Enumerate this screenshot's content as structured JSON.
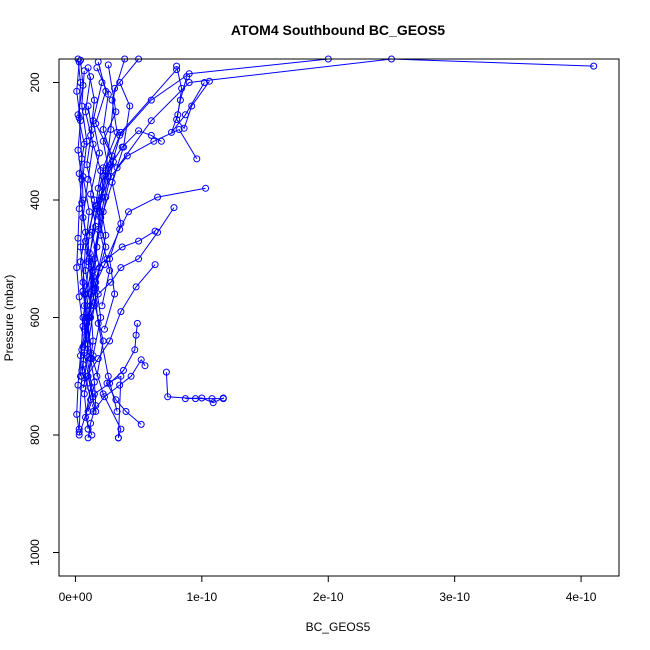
{
  "chart_data": {
    "type": "line",
    "title": "ATOM4 Southbound BC_GEOS5",
    "xlabel": "BC_GEOS5",
    "ylabel": "Pressure (mbar)",
    "xlim": [
      -1.3e-11,
      4.3e-10
    ],
    "ylim": [
      1040,
      160
    ],
    "y_reversed": true,
    "x_ticks": [
      0,
      1e-10,
      2e-10,
      3e-10,
      4e-10
    ],
    "x_tick_labels": [
      "0e+00",
      "1e-10",
      "2e-10",
      "3e-10",
      "4e-10"
    ],
    "y_ticks": [
      200,
      400,
      600,
      800,
      1000
    ],
    "y_tick_labels": [
      "200",
      "400",
      "600",
      "800",
      "1000"
    ],
    "grid": false,
    "legend": "none",
    "marker": "open-circle",
    "series_color": "#0000ff",
    "series": [
      {
        "x": [
          2e-12,
          4e-12,
          3e-12,
          5e-12,
          6e-12,
          4e-12,
          8e-12,
          7e-12,
          1.2e-11,
          1.5e-11,
          1.6e-11,
          1.2e-11,
          1e-11
        ],
        "y": [
          160,
          200,
          260,
          330,
          400,
          480,
          560,
          620,
          670,
          710,
          750,
          780,
          805
        ]
      },
      {
        "x": [
          5e-11,
          3.1e-11,
          2.8e-11,
          2.4e-11,
          1.9e-11,
          1.7e-11,
          1.4e-11,
          9e-12,
          6e-12,
          1.2e-11,
          3e-12
        ],
        "y": [
          160,
          210,
          280,
          350,
          420,
          480,
          550,
          610,
          680,
          740,
          800
        ]
      },
      {
        "x": [
          2e-10,
          9e-11,
          6e-11,
          3.5e-11,
          2.2e-11,
          1.8e-11,
          1.4e-11,
          1e-11,
          5e-12,
          3e-12
        ],
        "y": [
          160,
          185,
          230,
          290,
          360,
          450,
          520,
          600,
          700,
          790
        ]
      },
      {
        "x": [
          4.1e-10,
          2.5e-10,
          9e-11,
          6e-11,
          3.3e-11,
          2.2e-11,
          1.5e-11,
          9e-12,
          1.2e-11,
          2.2e-11,
          3.6e-11,
          3.4e-11
        ],
        "y": [
          172,
          160,
          200,
          265,
          345,
          420,
          500,
          580,
          660,
          730,
          790,
          805
        ]
      },
      {
        "x": [
          8e-11,
          3.6e-11,
          2.6e-11,
          2e-11,
          1.3e-11,
          6e-12,
          4e-12
        ],
        "y": [
          178,
          285,
          360,
          430,
          510,
          600,
          700
        ]
      },
      {
        "x": [
          9.6e-11,
          8.2e-11,
          6.2e-11,
          4.1e-11,
          2.8e-11,
          1.7e-11,
          1.1e-11,
          7e-12
        ],
        "y": [
          330,
          280,
          300,
          325,
          360,
          410,
          500,
          580
        ]
      },
      {
        "x": [
          1.03e-10,
          6.5e-11,
          4.2e-11,
          3.5e-11,
          2.3e-11,
          1.2e-11,
          9e-12,
          5e-12
        ],
        "y": [
          380,
          395,
          420,
          450,
          510,
          560,
          630,
          690
        ]
      },
      {
        "x": [
          7.8e-11,
          6.5e-11,
          5e-11,
          3.6e-11,
          2.8e-11,
          1.8e-11,
          1.2e-11,
          6e-12
        ],
        "y": [
          413,
          455,
          500,
          515,
          540,
          560,
          600,
          650
        ]
      },
      {
        "x": [
          6.3e-11,
          5e-11,
          3.7e-11,
          2.5e-11,
          1.4e-11,
          7e-12
        ],
        "y": [
          453,
          470,
          480,
          500,
          520,
          560
        ]
      },
      {
        "x": [
          6.3e-11,
          4.8e-11,
          3.6e-11,
          2.7e-11,
          1.8e-11,
          9e-12,
          6e-12
        ],
        "y": [
          510,
          548,
          590,
          640,
          670,
          700,
          720
        ]
      },
      {
        "x": [
          4.9e-11,
          4.8e-11,
          4.7e-11,
          3.8e-11,
          2.7e-11,
          1.5e-11,
          1e-11
        ],
        "y": [
          610,
          630,
          655,
          690,
          712,
          730,
          760
        ]
      },
      {
        "x": [
          5.5e-11,
          5.2e-11,
          4.4e-11,
          3.5e-11,
          2.3e-11,
          1.4e-11
        ],
        "y": [
          682,
          672,
          700,
          715,
          735,
          760
        ]
      },
      {
        "x": [
          7.2e-11,
          7.3e-11,
          9.5e-11,
          1.08e-10,
          1.17e-10,
          1.17e-10,
          1.09e-10,
          1e-10,
          8.7e-11
        ],
        "y": [
          693,
          735,
          738,
          738,
          738,
          737,
          745,
          737,
          738
        ]
      },
      {
        "x": [
          5.2e-11,
          4e-11,
          3.2e-11,
          2.5e-11,
          3.6e-11,
          3.4e-11
        ],
        "y": [
          782,
          760,
          740,
          712,
          700,
          805
        ]
      },
      {
        "x": [
          8e-11,
          8.4e-11,
          8.1e-11,
          7.6e-11,
          8.7e-11,
          1.02e-10
        ],
        "y": [
          172,
          210,
          255,
          285,
          255,
          200
        ]
      },
      {
        "x": [
          1.06e-10,
          9.2e-11,
          8.6e-11,
          8e-11,
          8.3e-11,
          8.8e-11
        ],
        "y": [
          198,
          240,
          278,
          263,
          230,
          190
        ]
      },
      {
        "x": [
          6.8e-11,
          6e-11,
          5e-11,
          3.7e-11,
          2.8e-11,
          1.8e-11
        ],
        "y": [
          300,
          290,
          282,
          310,
          340,
          380
        ]
      },
      {
        "x": [
          1e-11,
          1.5e-11,
          1.2e-11,
          2e-11,
          1.6e-11,
          8e-12,
          1.4e-11,
          1.1e-11,
          9e-12,
          1.4e-11
        ],
        "y": [
          175,
          230,
          290,
          350,
          410,
          470,
          530,
          600,
          665,
          735
        ]
      },
      {
        "x": [
          1.8e-11,
          2.4e-11,
          1.6e-11,
          2.9e-11,
          2.1e-11,
          1.3e-11,
          1.9e-11,
          1.5e-11,
          1e-11,
          7e-12
        ],
        "y": [
          165,
          215,
          270,
          325,
          395,
          455,
          515,
          580,
          645,
          712
        ]
      },
      {
        "x": [
          2.6e-11,
          3.2e-11,
          2.2e-11,
          2.6e-11,
          1.9e-11,
          2.4e-11,
          1.6e-11,
          2e-11,
          1.4e-11
        ],
        "y": [
          170,
          250,
          300,
          345,
          400,
          460,
          540,
          600,
          665
        ]
      },
      {
        "x": [
          3.9e-11,
          2.9e-11,
          3.3e-11,
          2.2e-11,
          1.7e-11,
          2.4e-11,
          1.5e-11,
          1.8e-11,
          2.6e-11,
          3.3e-11
        ],
        "y": [
          160,
          230,
          285,
          345,
          415,
          480,
          550,
          610,
          700,
          760
        ]
      },
      {
        "x": [
          3e-12,
          1e-12,
          4e-12,
          2e-12,
          5e-12,
          3e-12,
          2e-12,
          1e-12,
          3e-12,
          6e-12,
          4e-12,
          2e-12,
          1e-12,
          3e-12
        ],
        "y": [
          165,
          215,
          265,
          315,
          365,
          415,
          465,
          515,
          565,
          615,
          665,
          715,
          765,
          795
        ]
      },
      {
        "x": [
          7e-12,
          5e-12,
          9e-12,
          6e-12,
          1.1e-11,
          8e-12,
          6e-12,
          9e-12,
          7e-12,
          1.2e-11,
          8e-12,
          1.3e-11
        ],
        "y": [
          180,
          240,
          300,
          360,
          420,
          480,
          540,
          600,
          660,
          720,
          770,
          800
        ]
      },
      {
        "x": [
          1.2e-11,
          8e-12,
          1.4e-11,
          1e-11,
          6e-12,
          1.1e-11,
          1.6e-11,
          9e-12,
          1.3e-11,
          7e-12,
          1e-11
        ],
        "y": [
          190,
          250,
          305,
          365,
          430,
          490,
          550,
          610,
          670,
          730,
          790
        ]
      },
      {
        "x": [
          2.1e-11,
          1.4e-11,
          1.9e-11,
          1.2e-11,
          1.6e-11,
          1e-11,
          1.5e-11,
          2.2e-11,
          1.7e-11
        ],
        "y": [
          200,
          265,
          320,
          390,
          445,
          505,
          575,
          640,
          700
        ]
      },
      {
        "x": [
          1.7e-11,
          2.6e-11,
          2.2e-11,
          3e-11,
          2.4e-11,
          2e-11,
          2.7e-11,
          2.1e-11
        ],
        "y": [
          175,
          220,
          280,
          335,
          395,
          460,
          520,
          580
        ]
      },
      {
        "x": [
          4e-12,
          6e-12,
          2e-12,
          7e-12,
          3e-12,
          5e-12,
          8e-12,
          4e-12,
          6e-12,
          9e-12,
          5e-12
        ],
        "y": [
          162,
          205,
          255,
          305,
          355,
          405,
          455,
          505,
          555,
          605,
          655
        ]
      },
      {
        "x": [
          3.5e-11,
          4.3e-11,
          3.8e-11,
          2.9e-11,
          3.6e-11,
          2.7e-11,
          3.1e-11,
          2.3e-11
        ],
        "y": [
          200,
          240,
          310,
          370,
          440,
          500,
          560,
          620
        ]
      },
      {
        "x": [
          1e-11,
          1.3e-11,
          9e-12,
          1.5e-11,
          1.1e-11,
          8e-12,
          1.2e-11,
          1.4e-11,
          1e-11,
          1.6e-11
        ],
        "y": [
          240,
          280,
          340,
          400,
          460,
          520,
          580,
          640,
          700,
          760
        ]
      }
    ]
  }
}
